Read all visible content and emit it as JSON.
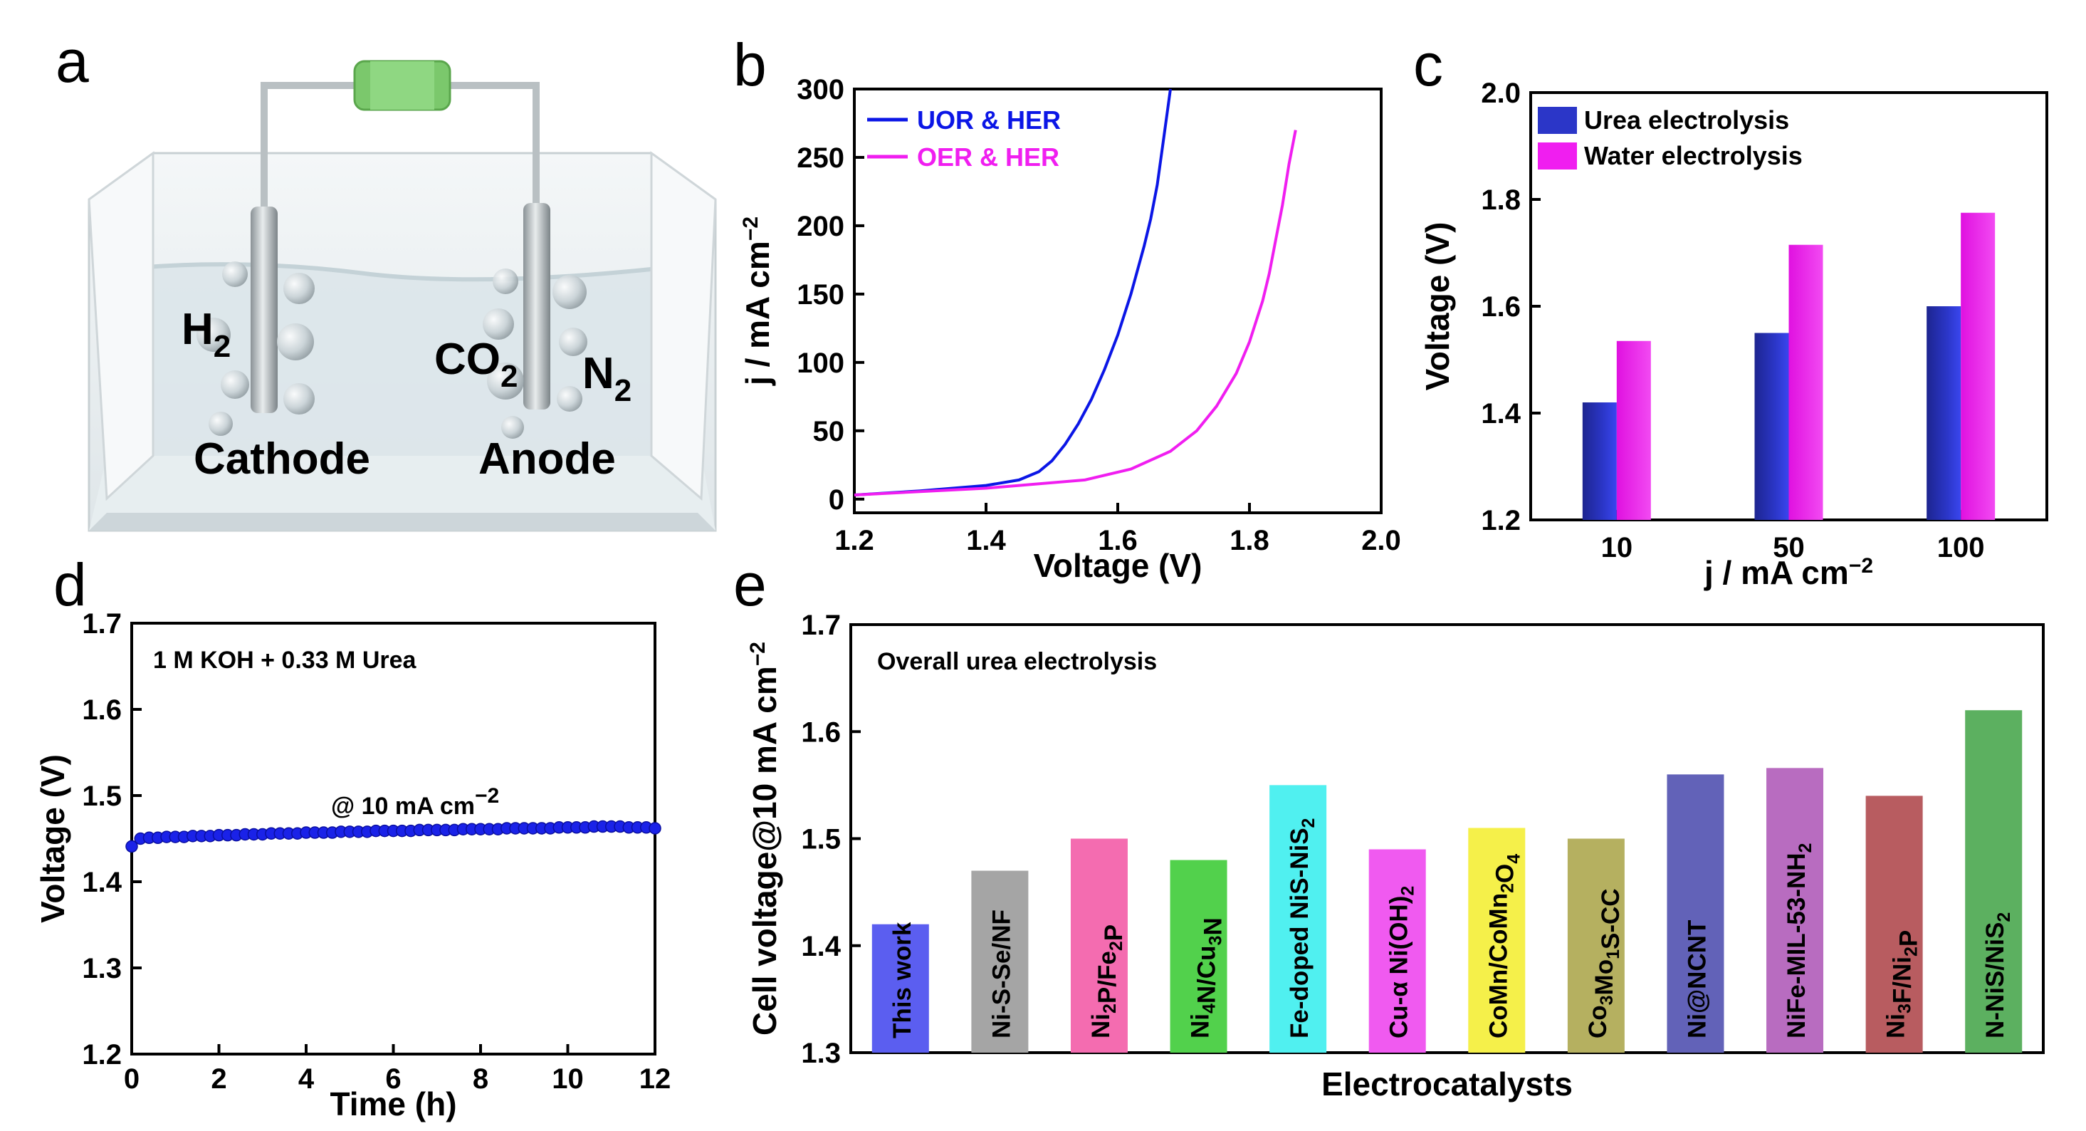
{
  "panels": {
    "a": {
      "letter": "a"
    },
    "b": {
      "letter": "b"
    },
    "c": {
      "letter": "c"
    },
    "d": {
      "letter": "d"
    },
    "e": {
      "letter": "e"
    }
  },
  "cell": {
    "h2_main": "H",
    "h2_sub": "2",
    "co2_main": "CO",
    "co2_sub": "2",
    "n2_main": "N",
    "n2_sub": "2",
    "cathode": "Cathode",
    "anode": "Anode",
    "colors": {
      "resistor": "#7bc86c",
      "liquid": "#dfe9ec",
      "tank": "#eef2f4"
    }
  },
  "chart_data": [
    {
      "id": "b",
      "type": "line",
      "title": "",
      "xlabel": "Voltage (V)",
      "ylabel_main": "j / mA cm",
      "ylabel_sup": "−2",
      "xlim": [
        1.2,
        2.0
      ],
      "ylim": [
        -10,
        300
      ],
      "xticks": [
        "1.2",
        "1.4",
        "1.6",
        "1.8",
        "2.0"
      ],
      "yticks": [
        "0",
        "50",
        "100",
        "150",
        "200",
        "250",
        "300"
      ],
      "legend": "top-left",
      "series": [
        {
          "name": "UOR & HER",
          "color": "#0b16e6",
          "x": [
            1.2,
            1.3,
            1.4,
            1.45,
            1.48,
            1.5,
            1.52,
            1.54,
            1.56,
            1.58,
            1.6,
            1.62,
            1.64,
            1.65,
            1.66,
            1.67,
            1.68
          ],
          "y": [
            3,
            6,
            10,
            14,
            20,
            28,
            40,
            55,
            73,
            95,
            120,
            150,
            185,
            205,
            230,
            265,
            300
          ]
        },
        {
          "name": "OER & HER",
          "color": "#f01ef0",
          "x": [
            1.2,
            1.4,
            1.55,
            1.62,
            1.68,
            1.72,
            1.75,
            1.78,
            1.8,
            1.82,
            1.83,
            1.84,
            1.85,
            1.86,
            1.87
          ],
          "y": [
            3,
            8,
            14,
            22,
            35,
            50,
            68,
            92,
            115,
            145,
            165,
            190,
            215,
            245,
            270
          ]
        }
      ]
    },
    {
      "id": "c",
      "type": "bar",
      "xlabel_main": "j / mA cm",
      "xlabel_sup": "−2",
      "ylabel": "Voltage (V)",
      "categories": [
        "10",
        "50",
        "100"
      ],
      "ylim": [
        1.2,
        2.0
      ],
      "yticks": [
        "1.2",
        "1.4",
        "1.6",
        "1.8",
        "2.0"
      ],
      "legend": "top-left",
      "series": [
        {
          "name": "Urea electrolysis",
          "color": "#2b36c8",
          "values": [
            1.42,
            1.55,
            1.6
          ]
        },
        {
          "name": "Water electrolysis",
          "color": "#f01ef0",
          "values": [
            1.535,
            1.715,
            1.775
          ]
        }
      ]
    },
    {
      "id": "d",
      "type": "scatter",
      "xlabel": "Time (h)",
      "ylabel": "Voltage (V)",
      "xlim": [
        0,
        12
      ],
      "ylim": [
        1.2,
        1.7
      ],
      "xticks": [
        "0",
        "2",
        "4",
        "6",
        "8",
        "10",
        "12"
      ],
      "yticks": [
        "1.2",
        "1.3",
        "1.4",
        "1.5",
        "1.6",
        "1.7"
      ],
      "annotation": "1 M KOH + 0.33 M Urea",
      "current_label_main": "@ 10 mA cm",
      "current_label_sup": "−2",
      "marker_color": "#1a22e8",
      "x": [
        0,
        0.2,
        0.4,
        0.6,
        0.8,
        1.0,
        1.2,
        1.4,
        1.6,
        1.8,
        2.0,
        2.2,
        2.4,
        2.6,
        2.8,
        3.0,
        3.2,
        3.4,
        3.6,
        3.8,
        4.0,
        4.2,
        4.4,
        4.6,
        4.8,
        5.0,
        5.2,
        5.4,
        5.6,
        5.8,
        6.0,
        6.2,
        6.4,
        6.6,
        6.8,
        7.0,
        7.2,
        7.4,
        7.6,
        7.8,
        8.0,
        8.2,
        8.4,
        8.6,
        8.8,
        9.0,
        9.2,
        9.4,
        9.6,
        9.8,
        10.0,
        10.2,
        10.4,
        10.6,
        10.8,
        11.0,
        11.2,
        11.4,
        11.6,
        11.8,
        12.0
      ],
      "y": [
        1.441,
        1.45,
        1.451,
        1.451,
        1.452,
        1.452,
        1.452,
        1.453,
        1.453,
        1.453,
        1.454,
        1.454,
        1.454,
        1.455,
        1.455,
        1.455,
        1.456,
        1.456,
        1.456,
        1.456,
        1.457,
        1.457,
        1.457,
        1.457,
        1.458,
        1.458,
        1.458,
        1.458,
        1.459,
        1.459,
        1.459,
        1.459,
        1.459,
        1.46,
        1.46,
        1.46,
        1.46,
        1.46,
        1.461,
        1.461,
        1.461,
        1.461,
        1.461,
        1.462,
        1.462,
        1.462,
        1.462,
        1.462,
        1.462,
        1.463,
        1.463,
        1.463,
        1.463,
        1.464,
        1.464,
        1.464,
        1.464,
        1.463,
        1.463,
        1.463,
        1.462
      ]
    },
    {
      "id": "e",
      "type": "bar",
      "xlabel": "Electrocatalysts",
      "ylabel": "Cell voltage@10 mA cm",
      "ylabel_sup": "−2",
      "ylim": [
        1.3,
        1.7
      ],
      "yticks": [
        "1.3",
        "1.4",
        "1.5",
        "1.6",
        "1.7"
      ],
      "annotation": "Overall urea electrolysis",
      "categories": [
        "This work",
        "Ni-S-Se/NF",
        "Ni2P/Fe2P",
        "Ni4N/Cu3N",
        "Fe-doped NiS-NiS2",
        "Cu-α Ni(OH)2",
        "CoMn/CoMn2O4",
        "Co3Mo1S-CC",
        "Ni@NCNT",
        "NiFe-MIL-53-NH2",
        "Ni3F/Ni2P",
        "N-NiS/NiS2"
      ],
      "label_parts": [
        [
          [
            "This work",
            ""
          ]
        ],
        [
          [
            "Ni-S-Se/NF",
            ""
          ]
        ],
        [
          [
            "Ni",
            ""
          ],
          [
            "2",
            "sub"
          ],
          [
            "P/Fe",
            ""
          ],
          [
            "2",
            "sub"
          ],
          [
            "P",
            ""
          ]
        ],
        [
          [
            "Ni",
            ""
          ],
          [
            "4",
            "sub"
          ],
          [
            "N/Cu",
            ""
          ],
          [
            "3",
            "sub"
          ],
          [
            "N",
            ""
          ]
        ],
        [
          [
            "Fe-doped NiS-NiS",
            ""
          ],
          [
            "2",
            "sub"
          ]
        ],
        [
          [
            "Cu-α Ni(OH)",
            ""
          ],
          [
            "2",
            "sub"
          ]
        ],
        [
          [
            "CoMn/CoMn",
            ""
          ],
          [
            "2",
            "sub"
          ],
          [
            "O",
            ""
          ],
          [
            "4",
            "sub"
          ]
        ],
        [
          [
            "Co",
            ""
          ],
          [
            "3",
            "sub"
          ],
          [
            "Mo",
            ""
          ],
          [
            "1",
            "sub"
          ],
          [
            "S-CC",
            ""
          ]
        ],
        [
          [
            "Ni@NCNT",
            ""
          ]
        ],
        [
          [
            "NiFe-MIL-53-NH",
            ""
          ],
          [
            "2",
            "sub"
          ]
        ],
        [
          [
            "Ni",
            ""
          ],
          [
            "3",
            "sub"
          ],
          [
            "F/Ni",
            ""
          ],
          [
            "2",
            "sub"
          ],
          [
            "P",
            ""
          ]
        ],
        [
          [
            "N-NiS/NiS",
            ""
          ],
          [
            "2",
            "sub"
          ]
        ]
      ],
      "values": [
        1.42,
        1.47,
        1.5,
        1.48,
        1.55,
        1.49,
        1.51,
        1.5,
        1.56,
        1.566,
        1.54,
        1.62
      ],
      "colors": [
        "#5b5ef0",
        "#a5a5a5",
        "#f46cb0",
        "#52d14c",
        "#50f0f0",
        "#f05af0",
        "#f5f04a",
        "#b5b060",
        "#6262b8",
        "#b86cc0",
        "#b85c60",
        "#5cb060"
      ]
    }
  ]
}
